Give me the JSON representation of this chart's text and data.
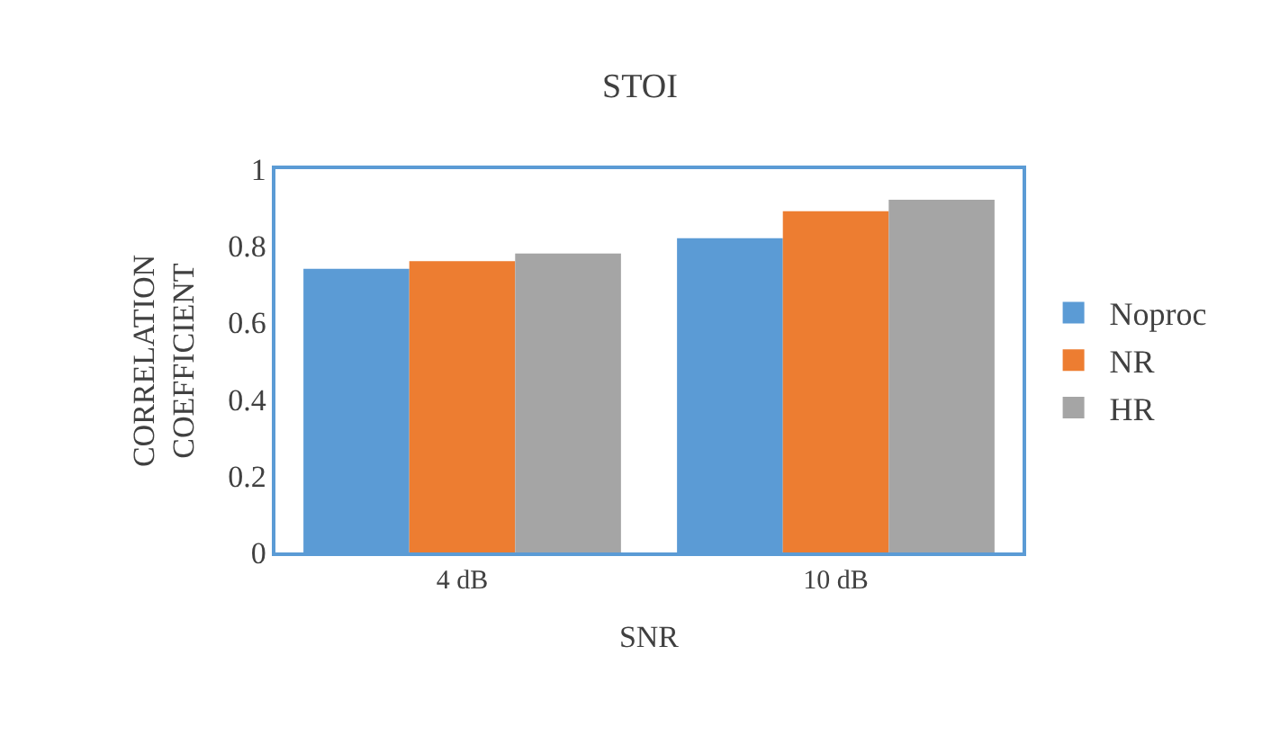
{
  "chart_data": {
    "type": "bar",
    "title": "STOI",
    "xlabel": "SNR",
    "ylabel": "CORRELATION COEFFICIENT",
    "categories": [
      "4 dB",
      "10 dB"
    ],
    "series": [
      {
        "name": "Noproc",
        "color": "#5b9bd5",
        "values": [
          0.74,
          0.82
        ]
      },
      {
        "name": "NR",
        "color": "#ed7d31",
        "values": [
          0.76,
          0.89
        ]
      },
      {
        "name": "HR",
        "color": "#a5a5a5",
        "values": [
          0.78,
          0.92
        ]
      }
    ],
    "ylim": [
      0,
      1
    ],
    "yticks": [
      0,
      0.2,
      0.4,
      0.6,
      0.8,
      1
    ],
    "grid": false,
    "legend": "right"
  }
}
